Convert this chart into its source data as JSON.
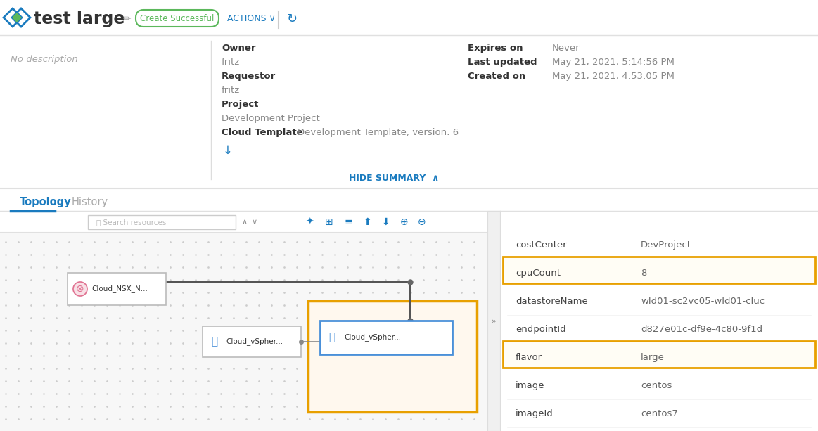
{
  "title": "test large",
  "badge_text": "Create Successful",
  "badge_color": "#5cb85c",
  "actions_text": "ACTIONS",
  "no_description": "No description",
  "owner_label": "Owner",
  "owner_value": "fritz",
  "requestor_label": "Requestor",
  "requestor_value": "fritz",
  "project_label": "Project",
  "project_value": "Development Project",
  "cloud_template_label": "Cloud Template",
  "cloud_template_value": "Development Template, version: 6",
  "expires_label": "Expires on",
  "expires_value": "Never",
  "last_updated_label": "Last updated",
  "last_updated_value": "May 21, 2021, 5:14:56 PM",
  "created_label": "Created on",
  "created_value": "May 21, 2021, 4:53:05 PM",
  "hide_summary": "HIDE SUMMARY",
  "tab_topology": "Topology",
  "tab_history": "History",
  "search_placeholder": "Search resources",
  "node1_label": "Cloud_NSX_N...",
  "node2_label": "Cloud_vSpher...",
  "node3_label": "Cloud_vSpher...",
  "bg_color": "#ffffff",
  "header_border": "#e0e0e0",
  "tab_active_color": "#1a7bbf",
  "tab_inactive_color": "#999999",
  "blue_color": "#1a7bbf",
  "orange_highlight": "#e8a000",
  "right_panel_rows": [
    {
      "key": "costCenter",
      "value": "DevProject",
      "highlighted": false
    },
    {
      "key": "cpuCount",
      "value": "8",
      "highlighted": true
    },
    {
      "key": "datastoreName",
      "value": "wld01-sc2vc05-wld01-cluc",
      "highlighted": false
    },
    {
      "key": "endpointId",
      "value": "d827e01c-df9e-4c80-9f1d",
      "highlighted": false
    },
    {
      "key": "flavor",
      "value": "large",
      "highlighted": true
    },
    {
      "key": "image",
      "value": "centos",
      "highlighted": false
    },
    {
      "key": "imageId",
      "value": "centos7",
      "highlighted": false
    }
  ]
}
